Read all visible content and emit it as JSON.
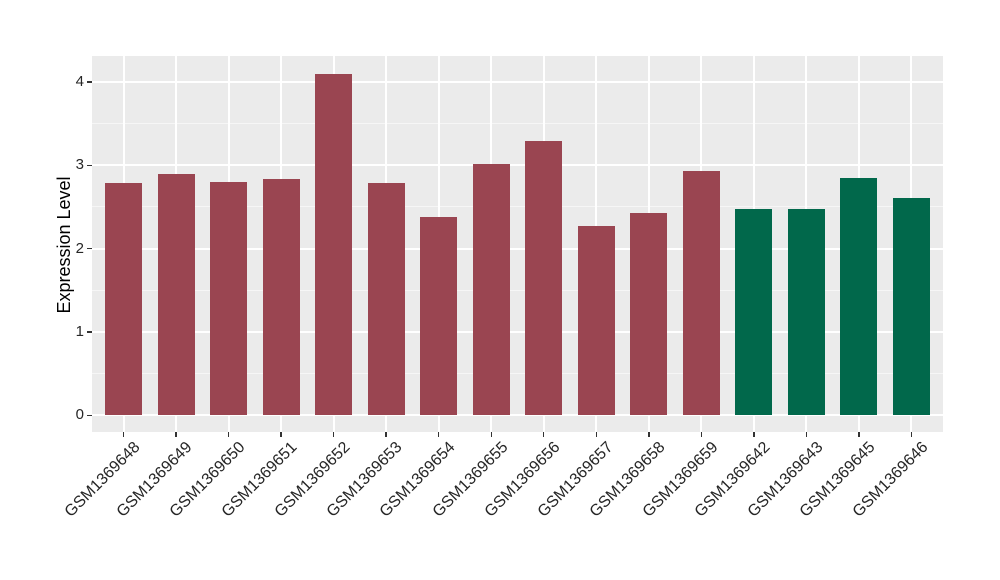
{
  "chart_data": {
    "type": "bar",
    "title": "",
    "xlabel": "",
    "ylabel": "Expression Level",
    "yticks": [
      0,
      1,
      2,
      3,
      4
    ],
    "ylim": [
      -0.2,
      4.31
    ],
    "grid": "horizontal major+minor white, vertical major at category centers",
    "legend_position": "none",
    "panel_background": "#EBEBEB",
    "gridline_color": "#FFFFFF",
    "categories": [
      "GSM1369648",
      "GSM1369649",
      "GSM1369650",
      "GSM1369651",
      "GSM1369652",
      "GSM1369653",
      "GSM1369654",
      "GSM1369655",
      "GSM1369656",
      "GSM1369657",
      "GSM1369658",
      "GSM1369659",
      "GSM1369642",
      "GSM1369643",
      "GSM1369645",
      "GSM1369646"
    ],
    "values": [
      2.79,
      2.9,
      2.8,
      2.84,
      4.09,
      2.79,
      2.38,
      3.01,
      3.29,
      2.27,
      2.43,
      2.93,
      2.48,
      2.47,
      2.85,
      2.61
    ],
    "groups": [
      "A",
      "A",
      "A",
      "A",
      "A",
      "A",
      "A",
      "A",
      "A",
      "A",
      "A",
      "A",
      "B",
      "B",
      "B",
      "B"
    ],
    "group_colors": {
      "A": "#9A4551",
      "B": "#01684B"
    }
  }
}
